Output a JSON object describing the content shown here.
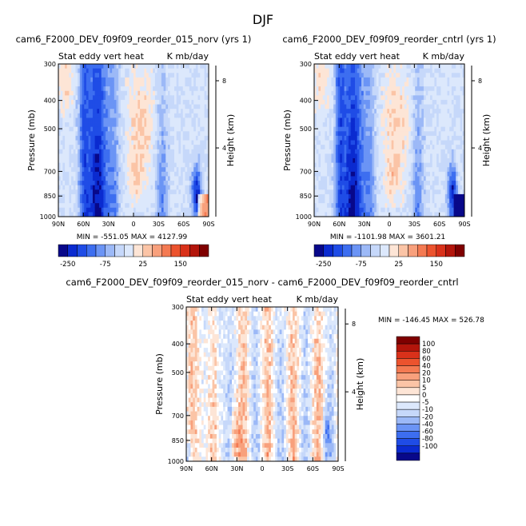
{
  "page": {
    "season_title": "DJF"
  },
  "chart_data": [
    {
      "type": "heatmap",
      "title": "cam6_F2000_DEV_f09f09_reorder_015_norv (yrs 1)",
      "subtitle_left": "Stat eddy vert heat",
      "subtitle_right": "K mb/day",
      "ylabel": "Pressure (mb)",
      "ylabel_right": "Height (km)",
      "x_ticks": [
        "90N",
        "60N",
        "30N",
        "0",
        "30S",
        "60S",
        "90S"
      ],
      "y_ticks": [
        "300",
        "400",
        "500",
        "700",
        "850",
        "1000"
      ],
      "y_ticks_right": [
        "8",
        "4"
      ],
      "stats": "MIN = -551.05   MAX = 4127.99",
      "legend_labels": [
        "-250",
        "-75",
        "25",
        "150"
      ],
      "colors": [
        "#08088a",
        "#0b2bd0",
        "#1f4ce6",
        "#3d6ef0",
        "#6b94f5",
        "#9cb9f7",
        "#c6d8fa",
        "#dce8fc",
        "#fde5d6",
        "#fbc4a6",
        "#f8a07c",
        "#f47a52",
        "#ec532e",
        "#d9311a",
        "#b3150b",
        "#7f0000"
      ]
    },
    {
      "type": "heatmap",
      "title": "cam6_F2000_DEV_f09f09_reorder_cntrl (yrs 1)",
      "subtitle_left": "Stat eddy vert heat",
      "subtitle_right": "K mb/day",
      "ylabel": "Pressure (mb)",
      "ylabel_right": "Height (km)",
      "x_ticks": [
        "90N",
        "60N",
        "30N",
        "0",
        "30S",
        "60S",
        "90S"
      ],
      "y_ticks": [
        "300",
        "400",
        "500",
        "700",
        "850",
        "1000"
      ],
      "y_ticks_right": [
        "8",
        "4"
      ],
      "stats": "MIN = -1101.98   MAX = 3601.21",
      "legend_labels": [
        "-250",
        "-75",
        "25",
        "150"
      ],
      "colors": [
        "#08088a",
        "#0b2bd0",
        "#1f4ce6",
        "#3d6ef0",
        "#6b94f5",
        "#9cb9f7",
        "#c6d8fa",
        "#dce8fc",
        "#fde5d6",
        "#fbc4a6",
        "#f8a07c",
        "#f47a52",
        "#ec532e",
        "#d9311a",
        "#b3150b",
        "#7f0000"
      ]
    },
    {
      "type": "heatmap",
      "title": "cam6_F2000_DEV_f09f09_reorder_015_norv - cam6_F2000_DEV_f09f09_reorder_cntrl",
      "subtitle_left": "Stat eddy vert heat",
      "subtitle_right": "K mb/day",
      "ylabel": "Pressure (mb)",
      "ylabel_right": "Height (km)",
      "x_ticks": [
        "90N",
        "60N",
        "30N",
        "0",
        "30S",
        "60S",
        "90S"
      ],
      "y_ticks": [
        "300",
        "400",
        "500",
        "700",
        "850",
        "1000"
      ],
      "y_ticks_right": [
        "8",
        "4"
      ],
      "stats": "MIN = -146.45   MAX = 526.78",
      "legend_labels": [
        "100",
        "80",
        "60",
        "40",
        "20",
        "10",
        "5",
        "0",
        "-5",
        "-10",
        "-20",
        "-40",
        "-60",
        "-80",
        "-100"
      ],
      "colors": [
        "#7f0000",
        "#b3150b",
        "#d9311a",
        "#ec532e",
        "#f47a52",
        "#f8a07c",
        "#fbc4a6",
        "#fde5d6",
        "#ffffff",
        "#dce8fc",
        "#c6d8fa",
        "#9cb9f7",
        "#6b94f5",
        "#3d6ef0",
        "#1f4ce6",
        "#0b2bd0",
        "#08088a"
      ]
    }
  ]
}
